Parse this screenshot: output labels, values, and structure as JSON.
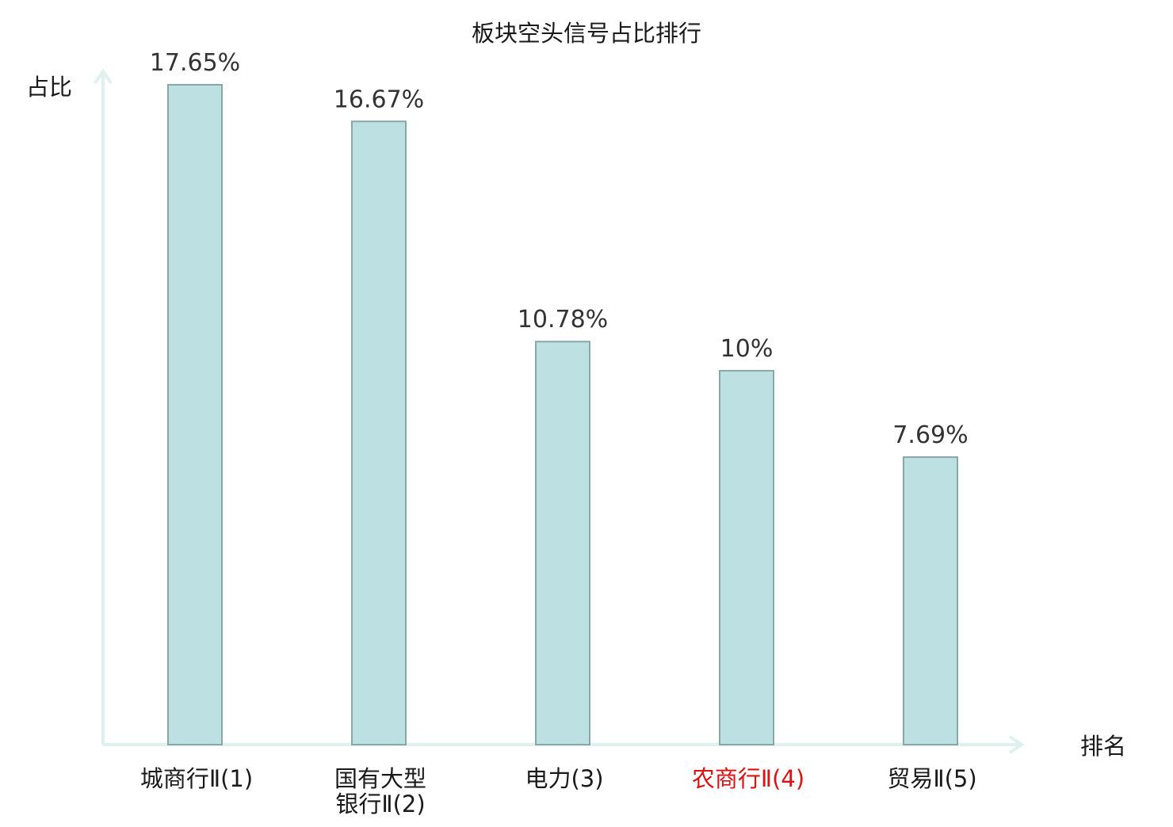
{
  "chart_data": {
    "type": "bar",
    "title": "板块空头信号占比排行",
    "ylabel": "占比",
    "xlabel": "排名",
    "ylim": [
      0,
      17.65
    ],
    "grid": false,
    "categories": [
      [
        "城商行Ⅱ(1)"
      ],
      [
        "国有大型",
        "银行Ⅱ(2)"
      ],
      [
        "电力(3)"
      ],
      [
        "农商行Ⅱ(4)"
      ],
      [
        "贸易Ⅱ(5)"
      ]
    ],
    "values": [
      17.65,
      16.67,
      10.78,
      10,
      7.69
    ],
    "value_labels": [
      "17.65%",
      "16.67%",
      "10.78%",
      "10%",
      "7.69%"
    ],
    "highlight_index": 3,
    "colors": {
      "bar_fill": "#bde0e2",
      "bar_stroke": "#8aa7a8",
      "axis": "#dff1ef",
      "text": "#1a1a1a",
      "value_text": "#333333",
      "highlight_text": "#dd1111"
    }
  }
}
